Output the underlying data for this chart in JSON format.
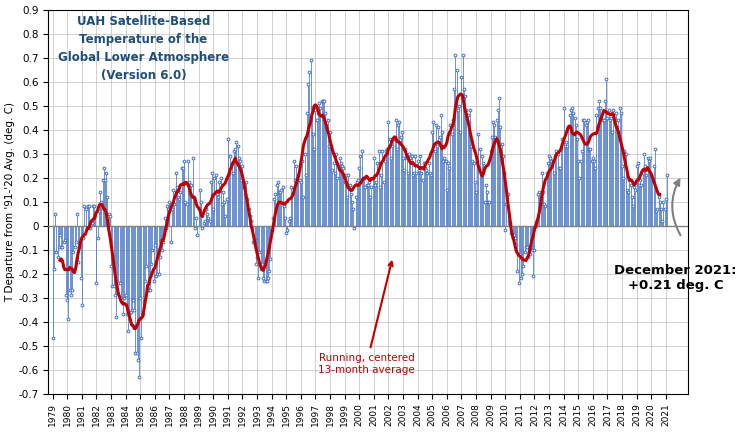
{
  "title": "UAH Satellite-Based\nTemperature of the\nGlobal Lower Atmosphere\n(Version 6.0)",
  "ylabel": "T Departure from '91-'20 Avg. (deg. C)",
  "ylim": [
    -0.7,
    0.9
  ],
  "yticks": [
    -0.7,
    -0.6,
    -0.5,
    -0.4,
    -0.3,
    -0.2,
    -0.1,
    0.0,
    0.1,
    0.2,
    0.3,
    0.4,
    0.5,
    0.6,
    0.7,
    0.8,
    0.9
  ],
  "title_color": "#1F4E79",
  "annotation_arrow_text": "Running, centered\n13-month average",
  "annotation_dec2021": "December 2021:\n+0.21 deg. C",
  "line_color": "#4472C4",
  "smooth_color": "#C00000",
  "background_color": "#FFFFFF",
  "grid_color": "#BFBFBF",
  "monthly_data": [
    -0.47,
    -0.18,
    0.05,
    -0.11,
    -0.13,
    -0.09,
    -0.04,
    -0.09,
    -0.09,
    -0.07,
    -0.06,
    -0.29,
    -0.31,
    -0.39,
    -0.27,
    -0.29,
    -0.27,
    -0.11,
    -0.09,
    -0.07,
    0.05,
    -0.15,
    -0.09,
    -0.22,
    -0.33,
    -0.05,
    0.08,
    0.07,
    -0.01,
    0.08,
    0.08,
    -0.01,
    0.01,
    0.08,
    0.08,
    0.04,
    -0.24,
    -0.05,
    0.06,
    0.14,
    0.1,
    0.19,
    0.24,
    0.19,
    0.22,
    0.12,
    0.05,
    0.04,
    -0.17,
    -0.25,
    -0.25,
    -0.29,
    -0.38,
    -0.28,
    -0.24,
    -0.24,
    -0.3,
    -0.31,
    -0.37,
    -0.3,
    -0.29,
    -0.37,
    -0.44,
    -0.37,
    -0.36,
    -0.35,
    -0.31,
    -0.35,
    -0.53,
    -0.53,
    -0.56,
    -0.63,
    -0.3,
    -0.47,
    -0.37,
    -0.32,
    -0.23,
    -0.17,
    -0.27,
    -0.27,
    -0.27,
    -0.16,
    -0.1,
    -0.23,
    -0.08,
    -0.21,
    -0.2,
    -0.2,
    -0.13,
    -0.06,
    -0.1,
    -0.07,
    0.03,
    -0.01,
    0.08,
    0.07,
    0.1,
    -0.07,
    0.07,
    0.15,
    0.09,
    0.22,
    0.16,
    0.12,
    0.11,
    0.14,
    0.24,
    0.24,
    0.27,
    0.1,
    0.09,
    0.27,
    0.18,
    0.13,
    0.17,
    0.28,
    0.12,
    -0.01,
    0.03,
    -0.04,
    0.07,
    0.15,
    0.1,
    -0.01,
    0.01,
    0.02,
    0.07,
    0.05,
    0.03,
    0.02,
    0.18,
    0.22,
    0.07,
    0.2,
    0.21,
    0.13,
    0.12,
    0.18,
    0.2,
    0.09,
    0.14,
    0.1,
    0.04,
    0.11,
    0.36,
    0.22,
    0.29,
    0.26,
    0.22,
    0.31,
    0.32,
    0.35,
    0.33,
    0.28,
    0.27,
    0.19,
    0.25,
    0.16,
    0.13,
    0.18,
    0.11,
    0.07,
    0.04,
    0.02,
    -0.01,
    -0.07,
    -0.06,
    -0.16,
    -0.13,
    -0.22,
    -0.11,
    -0.18,
    -0.16,
    -0.22,
    -0.23,
    -0.23,
    -0.23,
    -0.22,
    -0.19,
    -0.14,
    -0.02,
    0.03,
    0.11,
    0.13,
    0.17,
    0.18,
    0.14,
    0.14,
    0.15,
    0.16,
    0.08,
    0.03,
    -0.03,
    -0.02,
    0.02,
    0.03,
    0.16,
    0.13,
    0.27,
    0.19,
    0.25,
    0.18,
    0.21,
    0.19,
    0.18,
    0.27,
    0.12,
    0.3,
    0.21,
    0.47,
    0.59,
    0.64,
    0.69,
    0.49,
    0.38,
    0.32,
    0.48,
    0.44,
    0.47,
    0.51,
    0.49,
    0.52,
    0.52,
    0.52,
    0.47,
    0.41,
    0.44,
    0.33,
    0.39,
    0.33,
    0.23,
    0.26,
    0.22,
    0.3,
    0.2,
    0.24,
    0.28,
    0.26,
    0.25,
    0.24,
    0.18,
    0.21,
    0.12,
    0.21,
    0.17,
    0.13,
    0.1,
    0.07,
    -0.01,
    0.12,
    0.18,
    0.19,
    0.24,
    0.29,
    0.31,
    0.2,
    0.2,
    0.16,
    0.17,
    0.17,
    0.18,
    0.12,
    0.16,
    0.2,
    0.28,
    0.17,
    0.18,
    0.26,
    0.31,
    0.16,
    0.21,
    0.31,
    0.18,
    0.27,
    0.31,
    0.32,
    0.43,
    0.36,
    0.28,
    0.33,
    0.36,
    0.36,
    0.44,
    0.32,
    0.42,
    0.43,
    0.37,
    0.39,
    0.28,
    0.23,
    0.32,
    0.28,
    0.22,
    0.3,
    0.28,
    0.29,
    0.21,
    0.22,
    0.29,
    0.22,
    0.27,
    0.23,
    0.29,
    0.22,
    0.19,
    0.26,
    0.24,
    0.23,
    0.22,
    0.26,
    0.22,
    0.21,
    0.39,
    0.43,
    0.31,
    0.42,
    0.33,
    0.41,
    0.37,
    0.46,
    0.39,
    0.27,
    0.28,
    0.27,
    0.15,
    0.26,
    0.24,
    0.42,
    0.38,
    0.44,
    0.57,
    0.71,
    0.65,
    0.48,
    0.5,
    0.39,
    0.62,
    0.71,
    0.57,
    0.54,
    0.48,
    0.46,
    0.43,
    0.48,
    0.33,
    0.27,
    0.26,
    0.18,
    0.14,
    0.27,
    0.38,
    0.32,
    0.23,
    0.29,
    0.26,
    0.1,
    0.17,
    0.14,
    0.1,
    0.1,
    0.31,
    0.37,
    0.43,
    0.42,
    0.37,
    0.44,
    0.48,
    0.53,
    0.41,
    0.34,
    0.29,
    0.22,
    -0.02,
    0.09,
    0.13,
    0.02,
    0.01,
    -0.03,
    -0.05,
    -0.04,
    -0.05,
    -0.08,
    -0.19,
    -0.24,
    -0.12,
    -0.22,
    -0.2,
    -0.17,
    -0.11,
    -0.09,
    -0.09,
    -0.13,
    -0.12,
    -0.09,
    -0.1,
    -0.21,
    -0.1,
    0.0,
    0.02,
    0.13,
    0.14,
    0.1,
    0.22,
    0.14,
    0.09,
    0.08,
    0.22,
    0.26,
    0.29,
    0.28,
    0.27,
    0.27,
    0.22,
    0.29,
    0.31,
    0.3,
    0.24,
    0.24,
    0.32,
    0.36,
    0.49,
    0.33,
    0.35,
    0.33,
    0.41,
    0.46,
    0.48,
    0.49,
    0.47,
    0.45,
    0.42,
    0.36,
    0.27,
    0.2,
    0.27,
    0.31,
    0.44,
    0.44,
    0.42,
    0.43,
    0.44,
    0.32,
    0.32,
    0.27,
    0.28,
    0.27,
    0.24,
    0.46,
    0.49,
    0.52,
    0.49,
    0.45,
    0.44,
    0.44,
    0.52,
    0.61,
    0.45,
    0.48,
    0.44,
    0.45,
    0.39,
    0.48,
    0.44,
    0.47,
    0.41,
    0.44,
    0.49,
    0.47,
    0.25,
    0.2,
    0.31,
    0.3,
    0.15,
    0.14,
    0.19,
    0.17,
    0.12,
    0.08,
    0.16,
    0.15,
    0.25,
    0.26,
    0.17,
    0.19,
    0.17,
    0.22,
    0.3,
    0.25,
    0.21,
    0.28,
    0.27,
    0.28,
    0.21,
    0.19,
    0.25,
    0.32,
    0.06,
    0.07,
    0.12,
    0.1,
    0.07,
    0.02,
    0.1,
    0.07,
    0.11,
    0.21
  ],
  "start_year": 1979,
  "start_month": 1,
  "xtick_years": [
    1979,
    1980,
    1981,
    1982,
    1983,
    1984,
    1985,
    1986,
    1987,
    1988,
    1989,
    1990,
    1991,
    1992,
    1993,
    1994,
    1995,
    1996,
    1997,
    1998,
    1999,
    2000,
    2001,
    2002,
    2003,
    2004,
    2005,
    2006,
    2007,
    2008,
    2009,
    2010,
    2011,
    2012,
    2013,
    2014,
    2015,
    2016,
    2017,
    2018,
    2019,
    2020,
    2021
  ]
}
